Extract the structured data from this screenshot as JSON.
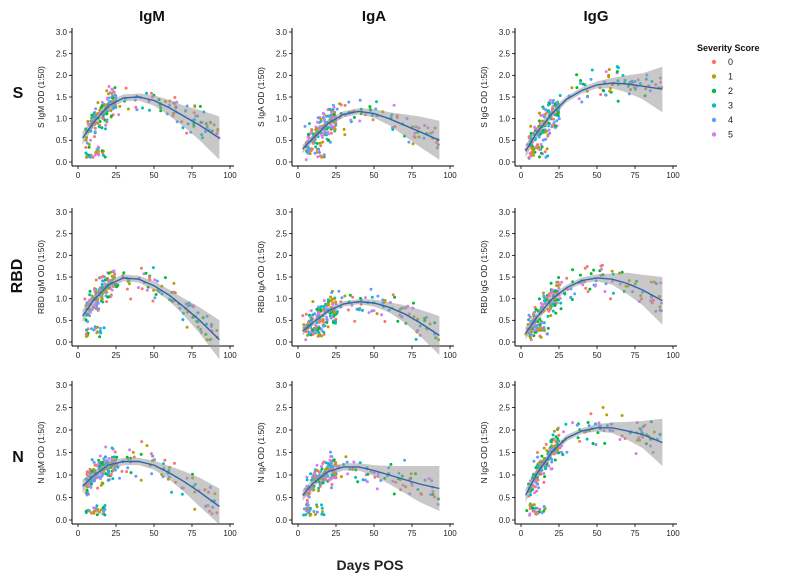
{
  "figure": {
    "col_titles": [
      "IgM",
      "IgA",
      "IgG"
    ],
    "row_titles": [
      "S",
      "RBD",
      "N"
    ],
    "xlabel": "Days POS",
    "legend": {
      "title": "Severity Score",
      "entries": [
        {
          "label": "0",
          "color": "#f8766d"
        },
        {
          "label": "1",
          "color": "#b79f00"
        },
        {
          "label": "2",
          "color": "#00ba38"
        },
        {
          "label": "3",
          "color": "#00bfc4"
        },
        {
          "label": "4",
          "color": "#619cff"
        },
        {
          "label": "5",
          "color": "#d67ef0"
        }
      ]
    }
  },
  "chart_data": [
    {
      "type": "scatter",
      "panel": "S-IgM",
      "ylabel": "S IgM OD (1:50)",
      "xlim": [
        0,
        100
      ],
      "ylim": [
        0,
        3
      ],
      "xticks": [
        "0",
        "25",
        "50",
        "75",
        "100"
      ],
      "yticks": [
        "0.0",
        "0.5",
        "1.0",
        "1.5",
        "2.0",
        "2.5",
        "3.0"
      ],
      "fit": {
        "x": [
          3,
          10,
          20,
          30,
          40,
          50,
          60,
          70,
          80,
          93
        ],
        "y": [
          0.55,
          0.9,
          1.3,
          1.48,
          1.5,
          1.42,
          1.25,
          1.05,
          0.85,
          0.55
        ],
        "lower": [
          0.4,
          0.8,
          1.2,
          1.4,
          1.42,
          1.3,
          1.07,
          0.8,
          0.5,
          0.05
        ],
        "upper": [
          0.7,
          1.0,
          1.4,
          1.56,
          1.58,
          1.54,
          1.43,
          1.3,
          1.2,
          1.05
        ]
      },
      "points": {
        "x_range": [
          3,
          93
        ],
        "cluster_days": [
          5,
          25
        ],
        "y_max": 2.4
      }
    },
    {
      "type": "scatter",
      "panel": "S-IgA",
      "ylabel": "S IgA OD (1:50)",
      "xlim": [
        0,
        100
      ],
      "ylim": [
        0,
        3
      ],
      "xticks": [
        "0",
        "25",
        "50",
        "75",
        "100"
      ],
      "yticks": [
        "0.0",
        "0.5",
        "1.0",
        "1.5",
        "2.0",
        "2.5",
        "3.0"
      ],
      "fit": {
        "x": [
          3,
          10,
          20,
          30,
          40,
          50,
          60,
          70,
          80,
          93
        ],
        "y": [
          0.3,
          0.55,
          0.9,
          1.1,
          1.17,
          1.12,
          1.0,
          0.85,
          0.7,
          0.5
        ],
        "lower": [
          0.2,
          0.47,
          0.82,
          1.03,
          1.1,
          1.02,
          0.85,
          0.6,
          0.35,
          0.05
        ],
        "upper": [
          0.4,
          0.63,
          0.98,
          1.17,
          1.24,
          1.22,
          1.15,
          1.1,
          1.05,
          0.95
        ]
      },
      "points": {
        "x_range": [
          3,
          93
        ],
        "cluster_days": [
          5,
          25
        ],
        "y_max": 2.0
      }
    },
    {
      "type": "scatter",
      "panel": "S-IgG",
      "ylabel": "S IgG OD (1:50)",
      "xlim": [
        0,
        100
      ],
      "ylim": [
        0,
        3
      ],
      "xticks": [
        "0",
        "25",
        "50",
        "75",
        "100"
      ],
      "yticks": [
        "0.0",
        "0.5",
        "1.0",
        "1.5",
        "2.0",
        "2.5",
        "3.0"
      ],
      "fit": {
        "x": [
          3,
          10,
          20,
          30,
          40,
          50,
          60,
          70,
          80,
          93
        ],
        "y": [
          0.25,
          0.65,
          1.1,
          1.45,
          1.65,
          1.78,
          1.82,
          1.8,
          1.75,
          1.68
        ],
        "lower": [
          0.1,
          0.55,
          1.0,
          1.38,
          1.58,
          1.7,
          1.7,
          1.6,
          1.45,
          1.15
        ],
        "upper": [
          0.4,
          0.75,
          1.2,
          1.52,
          1.72,
          1.86,
          1.94,
          2.0,
          2.05,
          2.2
        ]
      },
      "points": {
        "x_range": [
          3,
          93
        ],
        "cluster_days": [
          5,
          25
        ],
        "y_max": 2.4
      }
    },
    {
      "type": "scatter",
      "panel": "RBD-IgM",
      "ylabel": "RBD IgM OD (1:50)",
      "xlim": [
        0,
        100
      ],
      "ylim": [
        0,
        3
      ],
      "xticks": [
        "0",
        "25",
        "50",
        "75",
        "100"
      ],
      "yticks": [
        "0.0",
        "0.5",
        "1.0",
        "1.5",
        "2.0",
        "2.5",
        "3.0"
      ],
      "fit": {
        "x": [
          3,
          10,
          20,
          30,
          40,
          50,
          60,
          70,
          80,
          93
        ],
        "y": [
          0.6,
          0.95,
          1.32,
          1.48,
          1.45,
          1.3,
          1.08,
          0.8,
          0.5,
          0.05
        ],
        "lower": [
          0.45,
          0.85,
          1.22,
          1.4,
          1.37,
          1.2,
          0.95,
          0.6,
          0.2,
          -0.4
        ],
        "upper": [
          0.75,
          1.05,
          1.42,
          1.56,
          1.53,
          1.4,
          1.21,
          1.0,
          0.8,
          0.5
        ]
      },
      "points": {
        "x_range": [
          3,
          93
        ],
        "cluster_days": [
          5,
          25
        ],
        "y_max": 2.6
      }
    },
    {
      "type": "scatter",
      "panel": "RBD-IgA",
      "ylabel": "RBD IgA OD (1:50)",
      "xlim": [
        0,
        100
      ],
      "ylim": [
        0,
        3
      ],
      "xticks": [
        "0",
        "25",
        "50",
        "75",
        "100"
      ],
      "yticks": [
        "0.0",
        "0.5",
        "1.0",
        "1.5",
        "2.0",
        "2.5",
        "3.0"
      ],
      "fit": {
        "x": [
          3,
          10,
          20,
          30,
          40,
          50,
          60,
          70,
          80,
          93
        ],
        "y": [
          0.25,
          0.45,
          0.72,
          0.88,
          0.93,
          0.9,
          0.8,
          0.65,
          0.45,
          0.15
        ],
        "lower": [
          0.15,
          0.38,
          0.65,
          0.82,
          0.87,
          0.82,
          0.68,
          0.45,
          0.15,
          -0.3
        ],
        "upper": [
          0.35,
          0.52,
          0.79,
          0.94,
          0.99,
          0.98,
          0.92,
          0.85,
          0.75,
          0.6
        ]
      },
      "points": {
        "x_range": [
          3,
          93
        ],
        "cluster_days": [
          5,
          25
        ],
        "y_max": 1.8
      }
    },
    {
      "type": "scatter",
      "panel": "RBD-IgG",
      "ylabel": "RBD IgG OD (1:50)",
      "xlim": [
        0,
        100
      ],
      "ylim": [
        0,
        3
      ],
      "xticks": [
        "0",
        "25",
        "50",
        "75",
        "100"
      ],
      "yticks": [
        "0.0",
        "0.5",
        "1.0",
        "1.5",
        "2.0",
        "2.5",
        "3.0"
      ],
      "fit": {
        "x": [
          3,
          10,
          20,
          30,
          40,
          50,
          60,
          70,
          80,
          93
        ],
        "y": [
          0.2,
          0.55,
          0.98,
          1.25,
          1.42,
          1.48,
          1.45,
          1.35,
          1.2,
          0.95
        ],
        "lower": [
          0.05,
          0.45,
          0.88,
          1.18,
          1.35,
          1.4,
          1.32,
          1.1,
          0.85,
          0.4
        ],
        "upper": [
          0.35,
          0.65,
          1.08,
          1.32,
          1.49,
          1.56,
          1.58,
          1.6,
          1.55,
          1.5
        ]
      },
      "points": {
        "x_range": [
          3,
          93
        ],
        "cluster_days": [
          5,
          25
        ],
        "y_max": 2.4
      }
    },
    {
      "type": "scatter",
      "panel": "N-IgM",
      "ylabel": "N IgM OD (1:50)",
      "xlim": [
        0,
        100
      ],
      "ylim": [
        0,
        3
      ],
      "xticks": [
        "0",
        "25",
        "50",
        "75",
        "100"
      ],
      "yticks": [
        "0.0",
        "0.5",
        "1.0",
        "1.5",
        "2.0",
        "2.5",
        "3.0"
      ],
      "fit": {
        "x": [
          3,
          10,
          20,
          30,
          40,
          50,
          60,
          70,
          80,
          93
        ],
        "y": [
          0.75,
          0.98,
          1.22,
          1.3,
          1.3,
          1.22,
          1.05,
          0.85,
          0.62,
          0.3
        ],
        "lower": [
          0.6,
          0.88,
          1.12,
          1.22,
          1.22,
          1.12,
          0.9,
          0.62,
          0.3,
          -0.1
        ],
        "upper": [
          0.9,
          1.08,
          1.32,
          1.38,
          1.38,
          1.32,
          1.2,
          1.08,
          0.94,
          0.7
        ]
      },
      "points": {
        "x_range": [
          3,
          93
        ],
        "cluster_days": [
          5,
          25
        ],
        "y_max": 2.2
      }
    },
    {
      "type": "scatter",
      "panel": "N-IgA",
      "ylabel": "N IgA OD (1:50)",
      "xlim": [
        0,
        100
      ],
      "ylim": [
        0,
        3
      ],
      "xticks": [
        "0",
        "25",
        "50",
        "75",
        "100"
      ],
      "yticks": [
        "0.0",
        "0.5",
        "1.0",
        "1.5",
        "2.0",
        "2.5",
        "3.0"
      ],
      "fit": {
        "x": [
          3,
          10,
          20,
          30,
          40,
          50,
          60,
          70,
          80,
          93
        ],
        "y": [
          0.55,
          0.82,
          1.08,
          1.18,
          1.18,
          1.1,
          1.0,
          0.9,
          0.8,
          0.7
        ],
        "lower": [
          0.42,
          0.74,
          1.0,
          1.1,
          1.1,
          0.98,
          0.8,
          0.6,
          0.4,
          0.2
        ],
        "upper": [
          0.68,
          0.9,
          1.16,
          1.26,
          1.26,
          1.22,
          1.2,
          1.2,
          1.2,
          1.2
        ]
      },
      "points": {
        "x_range": [
          3,
          93
        ],
        "cluster_days": [
          5,
          25
        ],
        "y_max": 1.9
      }
    },
    {
      "type": "scatter",
      "panel": "N-IgG",
      "ylabel": "N IgG OD (1:50)",
      "xlim": [
        0,
        100
      ],
      "ylim": [
        0,
        3
      ],
      "xticks": [
        "0",
        "25",
        "50",
        "75",
        "100"
      ],
      "yticks": [
        "0.0",
        "0.5",
        "1.0",
        "1.5",
        "2.0",
        "2.5",
        "3.0"
      ],
      "fit": {
        "x": [
          3,
          10,
          20,
          30,
          40,
          50,
          60,
          70,
          80,
          93
        ],
        "y": [
          0.55,
          1.0,
          1.5,
          1.82,
          1.98,
          2.05,
          2.05,
          1.98,
          1.9,
          1.72
        ],
        "lower": [
          0.4,
          0.9,
          1.42,
          1.75,
          1.92,
          1.97,
          1.93,
          1.78,
          1.6,
          1.2
        ],
        "upper": [
          0.7,
          1.1,
          1.58,
          1.89,
          2.04,
          2.13,
          2.17,
          2.18,
          2.2,
          2.25
        ]
      },
      "points": {
        "x_range": [
          3,
          93
        ],
        "cluster_days": [
          5,
          25
        ],
        "y_max": 2.5
      }
    }
  ]
}
